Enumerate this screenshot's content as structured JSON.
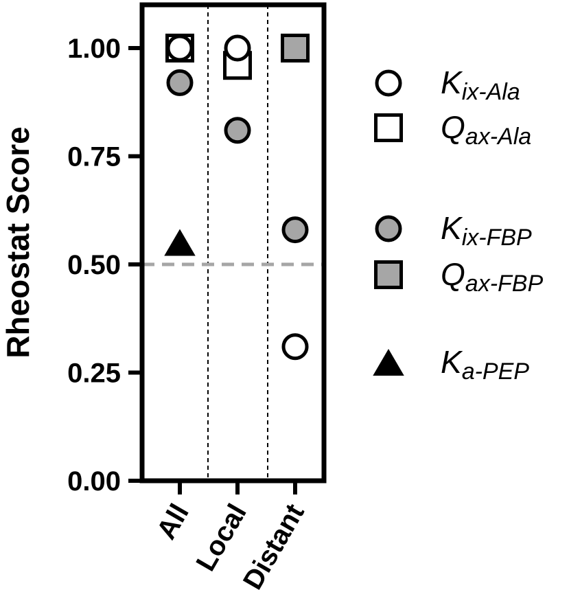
{
  "chart_data": {
    "type": "scatter",
    "ylabel": "Rheostat Score",
    "ylim": [
      0,
      1.1
    ],
    "yticks": [
      "0.00",
      "0.25",
      "0.50",
      "0.75",
      "1.00"
    ],
    "categories": [
      "All",
      "Local",
      "Distant"
    ],
    "reference_line": {
      "y": 0.5,
      "style": "dashed",
      "color": "#a6a6a6"
    },
    "series": [
      {
        "name_main": "K",
        "name_sub": "ix-Ala",
        "marker": "circle",
        "fill": "#ffffff",
        "values": [
          1.0,
          1.0,
          0.31
        ]
      },
      {
        "name_main": "Q",
        "name_sub": "ax-Ala",
        "marker": "square",
        "fill": "#ffffff",
        "values": [
          1.0,
          0.96,
          null
        ]
      },
      {
        "name_main": "K",
        "name_sub": "ix-FBP",
        "marker": "circle",
        "fill": "#a6a6a6",
        "values": [
          0.92,
          0.81,
          0.58
        ]
      },
      {
        "name_main": "Q",
        "name_sub": "ax-FBP",
        "marker": "square",
        "fill": "#a6a6a6",
        "values": [
          null,
          null,
          1.0
        ]
      },
      {
        "name_main": "K",
        "name_sub": "a-PEP",
        "marker": "triangle",
        "fill": "#000000",
        "values": [
          0.55,
          null,
          null
        ]
      }
    ]
  }
}
